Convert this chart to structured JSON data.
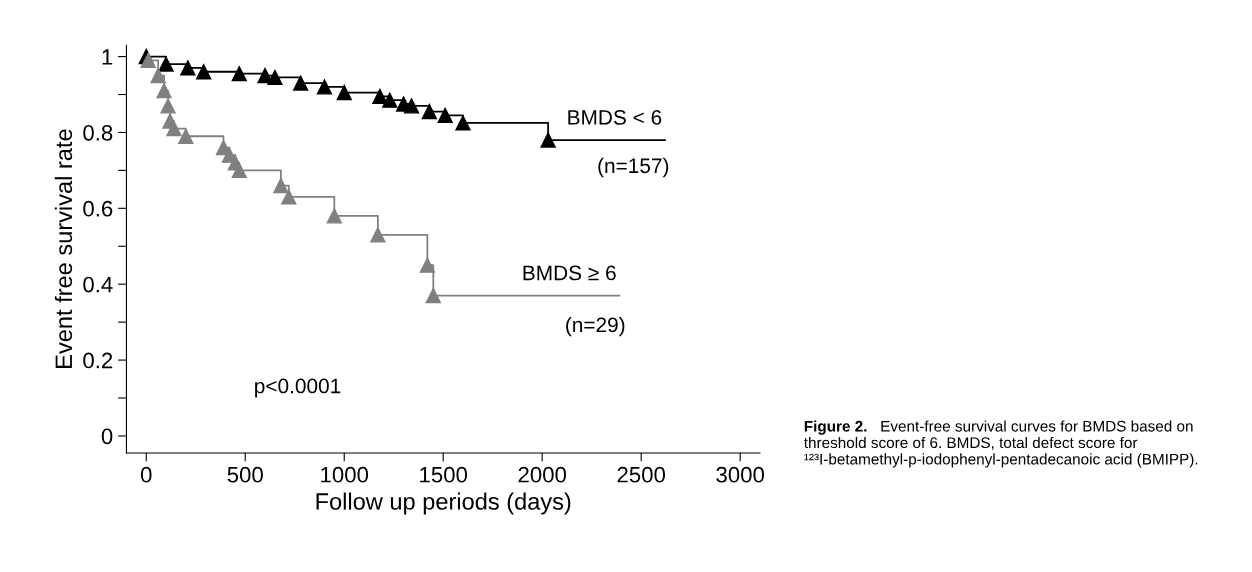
{
  "chart_data": {
    "type": "step",
    "xlabel": "Follow up periods (days)",
    "ylabel": "Event free survival rate",
    "xlim": [
      -100,
      3100
    ],
    "xticks": [
      0,
      500,
      1000,
      1500,
      2000,
      2500,
      3000
    ],
    "ylim": [
      -0.045,
      1.03
    ],
    "yticks": [
      0,
      {
        "value": 0.1,
        "label": null
      },
      0.2,
      {
        "value": 0.3,
        "label": null
      },
      0.4,
      {
        "value": 0.5,
        "label": null
      },
      0.6,
      {
        "value": 0.7,
        "label": null
      },
      0.8,
      {
        "value": 0.9,
        "label": null
      },
      1
    ],
    "marker": "triangle",
    "line_style": "solid",
    "grid": false,
    "legend": false,
    "series": [
      {
        "name": "BMDS < 6",
        "color": "#000000",
        "x": [
          0,
          100,
          210,
          290,
          470,
          600,
          650,
          780,
          900,
          1000,
          1180,
          1230,
          1300,
          1340,
          1430,
          1510,
          1600,
          2030,
          2620
        ],
        "values": [
          1.0,
          0.98,
          0.97,
          0.96,
          0.955,
          0.95,
          0.945,
          0.93,
          0.92,
          0.905,
          0.895,
          0.885,
          0.875,
          0.87,
          0.855,
          0.845,
          0.825,
          0.78,
          0.78
        ]
      },
      {
        "name": "BMDS ≥ 6",
        "color": "#808080",
        "x": [
          10,
          60,
          90,
          110,
          120,
          140,
          200,
          390,
          420,
          450,
          470,
          680,
          720,
          950,
          1170,
          1420,
          1450,
          2390
        ],
        "values": [
          0.99,
          0.95,
          0.91,
          0.87,
          0.83,
          0.81,
          0.79,
          0.76,
          0.74,
          0.72,
          0.7,
          0.66,
          0.63,
          0.58,
          0.53,
          0.45,
          0.37,
          0.37
        ]
      }
    ],
    "annotations": [
      "(n=157)",
      "(n=29)",
      "p<0.0001",
      "Figure 2.",
      "Event-free survival curves for BMDS based on threshold score of 6. BMDS, total defect score for ¹²³I-betamethyl-p-iodophenyl-pentadecanoic acid (BMIPP)."
    ]
  }
}
